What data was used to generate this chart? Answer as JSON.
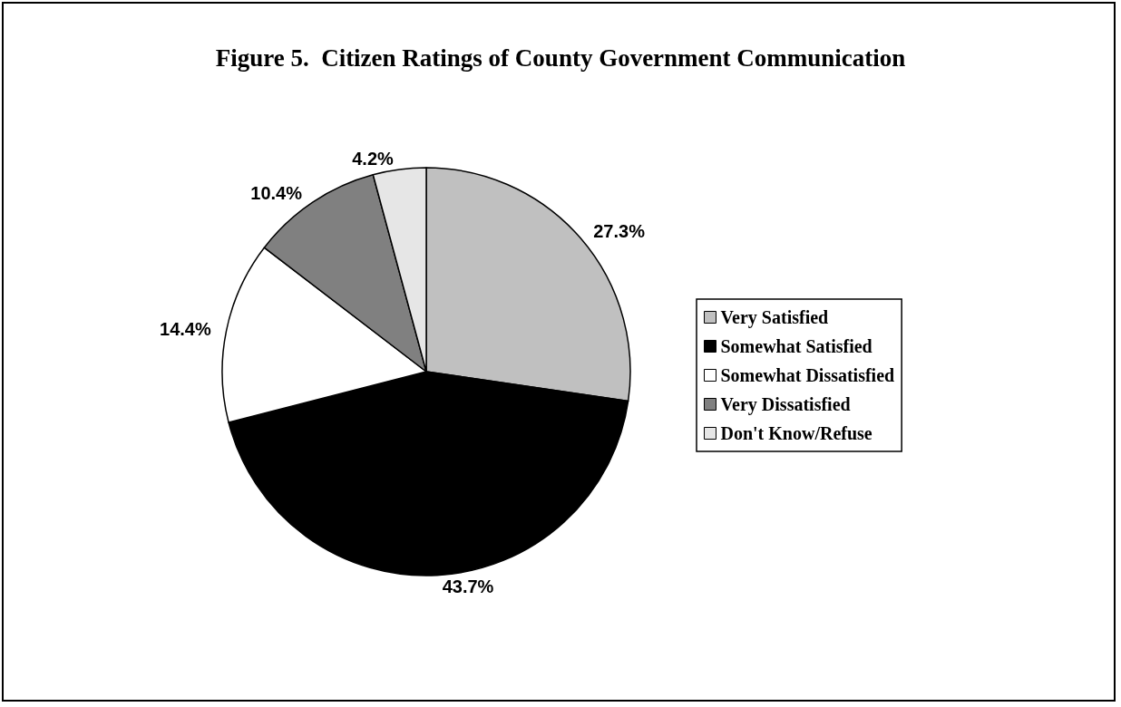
{
  "chart_data": {
    "type": "pie",
    "title": "Figure 5.  Citizen Ratings of County Government Communication",
    "categories": [
      "Very Satisfied",
      "Somewhat Satisfied",
      "Somewhat Dissatisfied",
      "Very Dissatisfied",
      "Don't Know/Refuse"
    ],
    "values": [
      27.3,
      43.7,
      14.4,
      10.4,
      4.2
    ],
    "value_labels": [
      "27.3%",
      "43.7%",
      "14.4%",
      "10.4%",
      "4.2%"
    ],
    "colors": [
      "#c0c0c0",
      "#000000",
      "#ffffff",
      "#808080",
      "#e6e6e6"
    ],
    "legend": "right"
  }
}
